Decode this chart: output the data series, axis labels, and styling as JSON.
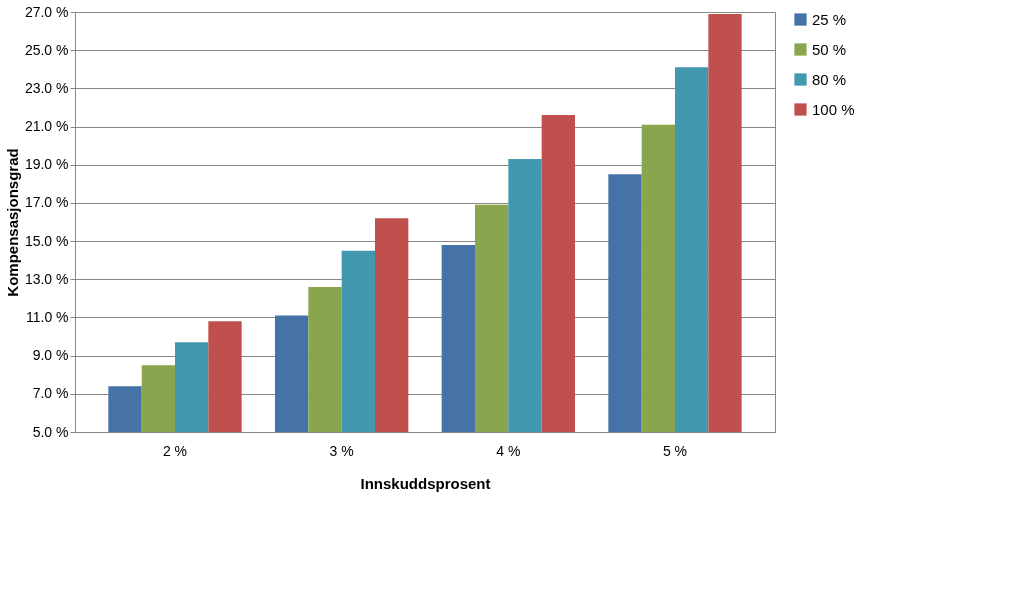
{
  "chart_data": {
    "type": "bar",
    "xlabel": "Innskuddsprosent",
    "ylabel": "Kompensasjonsgrad",
    "categories": [
      "2 %",
      "3 %",
      "4 %",
      "5 %"
    ],
    "series": [
      {
        "name": "25 %",
        "color": "#4572a7",
        "values": [
          7.4,
          11.1,
          14.8,
          18.5
        ]
      },
      {
        "name": "50 %",
        "color": "#89a54e",
        "values": [
          8.5,
          12.6,
          16.9,
          21.1
        ]
      },
      {
        "name": "80 %",
        "color": "#4198af",
        "values": [
          9.7,
          14.5,
          19.3,
          24.1
        ]
      },
      {
        "name": "100 %",
        "color": "#c0504d",
        "values": [
          10.8,
          16.2,
          21.6,
          26.9
        ]
      }
    ],
    "ylim": [
      5,
      27
    ],
    "yticks": [
      {
        "value": 5,
        "label": "5.0 %"
      },
      {
        "value": 7,
        "label": "7.0 %"
      },
      {
        "value": 9,
        "label": "9.0 %"
      },
      {
        "value": 11,
        "label": "11.0 %"
      },
      {
        "value": 13,
        "label": "13.0 %"
      },
      {
        "value": 15,
        "label": "15.0 %"
      },
      {
        "value": 17,
        "label": "17.0 %"
      },
      {
        "value": 19,
        "label": "19.0 %"
      },
      {
        "value": 21,
        "label": "21.0 %"
      },
      {
        "value": 23,
        "label": "23.0 %"
      },
      {
        "value": 25,
        "label": "25.0 %"
      },
      {
        "value": 27,
        "label": "27.0 %"
      }
    ],
    "grid": "y",
    "legend": "right"
  }
}
